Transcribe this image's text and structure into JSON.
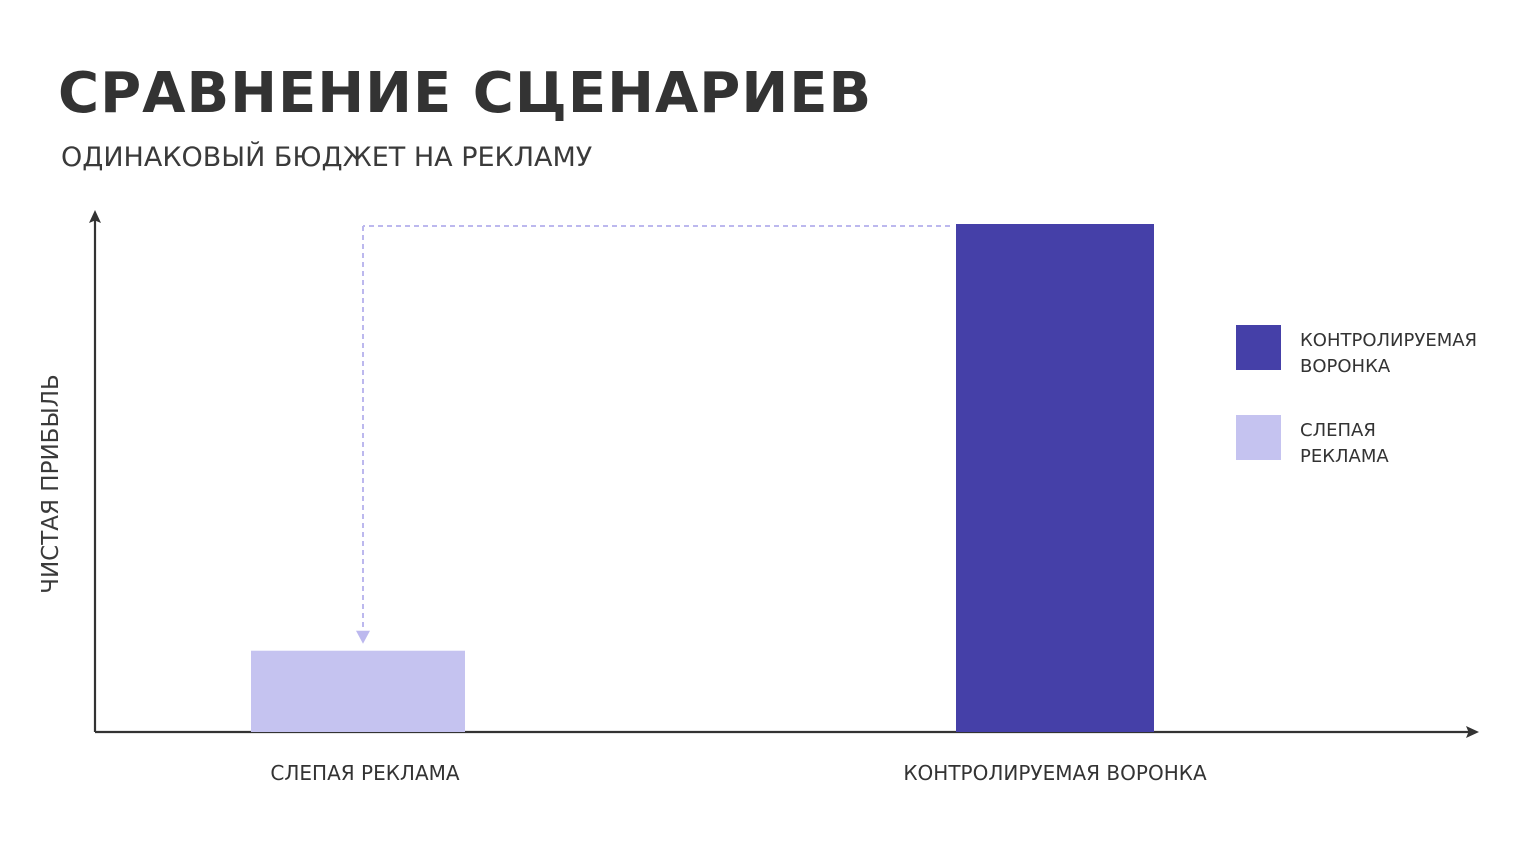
{
  "header": {
    "title": "СРАВНЕНИЕ СЦЕНАРИЕВ",
    "subtitle": "ОДИНАКОВЫЙ БЮДЖЕТ НА РЕКЛАМУ"
  },
  "legend": {
    "items": [
      {
        "label_line1": "КОНТРОЛИРУЕМАЯ",
        "label_line2": "ВОРОНКА",
        "color": "#4540a8"
      },
      {
        "label_line1": "СЛЕПАЯ",
        "label_line2": "РЕКЛАМА",
        "color": "#c5c3f0"
      }
    ]
  },
  "chart_data": {
    "type": "bar",
    "title": "СРАВНЕНИЕ СЦЕНАРИЕВ",
    "subtitle": "ОДИНАКОВЫЙ БЮДЖЕТ НА РЕКЛАМУ",
    "xlabel": "",
    "ylabel": "ЧИСТАЯ ПРИБЫЛЬ",
    "categories": [
      "СЛЕПАЯ РЕКЛАМА",
      "КОНТРОЛИРУЕМАЯ ВОРОНКА"
    ],
    "values": [
      16,
      100
    ],
    "colors": [
      "#c5c3f0",
      "#4540a8"
    ],
    "ylim": [
      0,
      100
    ],
    "grid": false,
    "axis_ticks": false,
    "legend_position": "right",
    "annotation": {
      "type": "dashed-arrow",
      "from_category": "КОНТРОЛИРУЕМАЯ ВОРОНКА",
      "to_category": "СЛЕПАЯ РЕКЛАМА",
      "color": "#bcb8ee"
    }
  }
}
